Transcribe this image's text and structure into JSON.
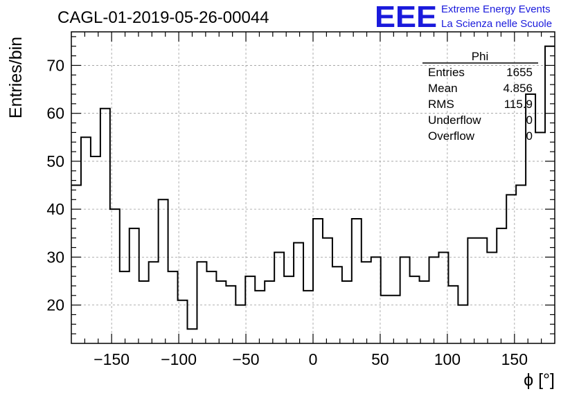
{
  "logo": {
    "mark": "EEE",
    "line1": "Extreme Energy Events",
    "line2": "La Scienza nelle Scuole",
    "color": "#1a1adc"
  },
  "stats": {
    "title": "Phi",
    "rows": [
      {
        "label": "Entries",
        "value": "1655"
      },
      {
        "label": "Mean",
        "value": "4.856"
      },
      {
        "label": "RMS",
        "value": "115.9"
      },
      {
        "label": "Underflow",
        "value": "0"
      },
      {
        "label": "Overflow",
        "value": "0"
      }
    ]
  },
  "chart_data": {
    "type": "bar",
    "title": "CAGL-01-2019-05-26-00044",
    "xlabel": "ϕ [°]",
    "ylabel": "Entries/bin",
    "xlim": [
      -180,
      180
    ],
    "ylim": [
      12,
      77
    ],
    "bin_width": 7.2,
    "x_ticks": [
      -150,
      -100,
      -50,
      0,
      50,
      100,
      150
    ],
    "x_tick_labels": [
      "−150",
      "−100",
      "−50",
      "0",
      "50",
      "100",
      "150"
    ],
    "y_ticks": [
      20,
      30,
      40,
      50,
      60,
      70
    ],
    "y_tick_labels": [
      "20",
      "30",
      "40",
      "50",
      "60",
      "70"
    ],
    "grid": true,
    "histogram": true,
    "values": [
      45,
      55,
      51,
      61,
      40,
      27,
      36,
      25,
      29,
      42,
      27,
      21,
      15,
      29,
      27,
      25,
      24,
      20,
      26,
      23,
      25,
      31,
      26,
      33,
      23,
      38,
      34,
      28,
      25,
      38,
      29,
      30,
      22,
      22,
      30,
      26,
      25,
      30,
      31,
      24,
      20,
      34,
      34,
      31,
      36,
      43,
      45,
      64,
      56,
      74
    ],
    "line_color": "#000000"
  }
}
